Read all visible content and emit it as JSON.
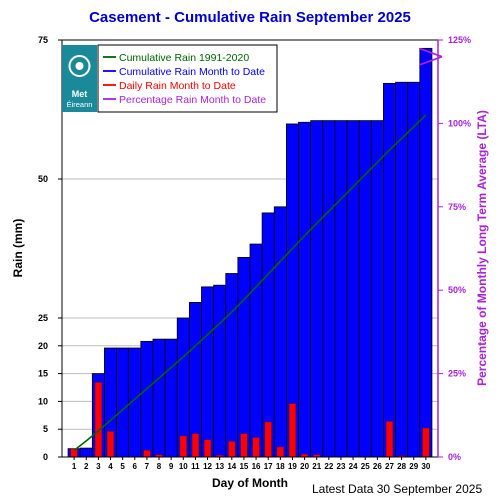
{
  "chart_data": {
    "type": "bar",
    "title": "Casement - Cumulative Rain September   2025",
    "xlabel": "Day of Month",
    "ylabel": "Rain (mm)",
    "y2label": "Percentage  of Monthly Long Term Average (LTA)",
    "footer": "Latest Data 30 September 2025",
    "logo_text": [
      "Met",
      "Éireann"
    ],
    "ylim": [
      0,
      75
    ],
    "y2lim": [
      0,
      125
    ],
    "y_ticks": [
      "0",
      "5",
      "10",
      "15",
      "20",
      "25",
      "50",
      "75"
    ],
    "y2_ticks": [
      "0%",
      "25%",
      "50%",
      "75%",
      "100%",
      "125%"
    ],
    "categories": [
      "1",
      "2",
      "3",
      "4",
      "5",
      "6",
      "7",
      "8",
      "9",
      "10",
      "11",
      "12",
      "13",
      "14",
      "15",
      "16",
      "17",
      "18",
      "19",
      "20",
      "21",
      "22",
      "23",
      "24",
      "25",
      "26",
      "27",
      "28",
      "29",
      "30"
    ],
    "colors": {
      "cumulative_bar": "#0000ff",
      "daily_bar": "#ff0000",
      "lta_line": "#006400",
      "percentage": "#aa22dd",
      "title": "#0000cc",
      "logo_bg": "#1a8a9a"
    },
    "legend": {
      "placement": "top-left",
      "entries": [
        "Cumulative Rain 1991-2020",
        "Cumulative Rain Month to Date",
        "Daily Rain Month to Date",
        "Percentage Rain Month to Date"
      ]
    },
    "series": [
      {
        "name": "Cumulative Rain Month to Date",
        "values": [
          1.5,
          1.6,
          15.0,
          19.6,
          19.6,
          19.6,
          20.8,
          21.2,
          21.2,
          25.0,
          27.8,
          30.6,
          30.9,
          33.0,
          35.9,
          38.3,
          43.9,
          45.0,
          59.9,
          60.2,
          60.5,
          60.5,
          60.5,
          60.5,
          60.5,
          60.5,
          67.2,
          67.4,
          67.4,
          73.5
        ]
      },
      {
        "name": "Daily Rain Month to Date",
        "values": [
          1.5,
          0.1,
          13.4,
          4.6,
          0,
          0,
          1.2,
          0.4,
          0,
          3.8,
          4.2,
          3.1,
          0.3,
          2.8,
          4.2,
          3.5,
          6.3,
          1.8,
          9.6,
          0.5,
          0.4,
          0,
          0,
          0,
          0,
          0,
          6.4,
          0.2,
          0,
          5.2
        ]
      },
      {
        "name": "Cumulative Rain 1991-2020",
        "values": [
          1.2,
          2.9,
          4.7,
          6.6,
          8.5,
          10.4,
          12.3,
          14.2,
          16.1,
          18.0,
          20.0,
          22.0,
          24.0,
          26.1,
          28.3,
          30.6,
          32.9,
          35.2,
          37.5,
          39.8,
          42.0,
          44.2,
          46.4,
          48.6,
          50.8,
          53.0,
          55.2,
          57.3,
          59.4,
          61.5
        ]
      }
    ],
    "percentage_month_to_date": 120
  }
}
